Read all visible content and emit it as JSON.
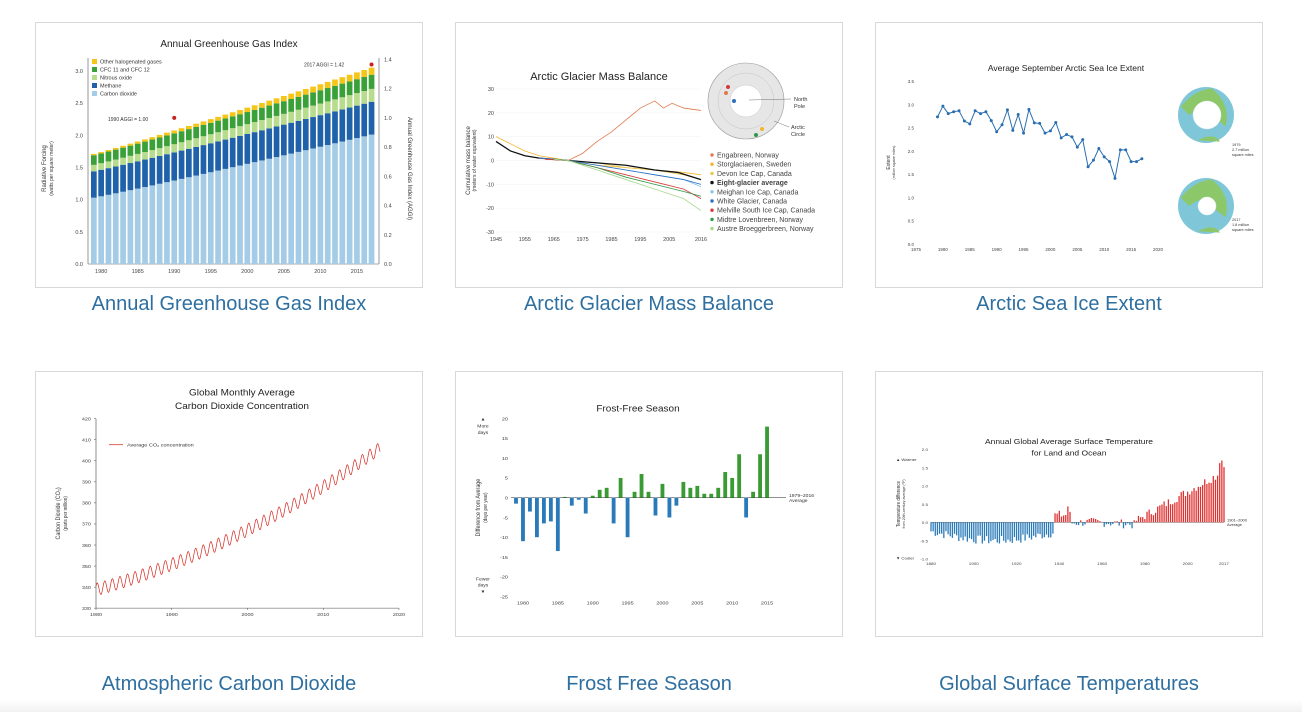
{
  "cards": [
    {
      "caption": "Annual Greenhouse Gas Index"
    },
    {
      "caption": "Arctic Glacier Mass Balance"
    },
    {
      "caption": "Arctic Sea Ice Extent"
    },
    {
      "caption": "Atmospheric Carbon Dioxide"
    },
    {
      "caption": "Frost Free Season"
    },
    {
      "caption": "Global Surface Temperatures"
    }
  ],
  "colors": {
    "caption": "#2e6fa0",
    "co2_red": "#d7261e",
    "bar_blue": "#2a7ab9",
    "bar_green": "#3a9b34",
    "temp_red": "#e03030"
  },
  "chart_data": [
    {
      "type": "bar",
      "title": "Annual Greenhouse Gas Index",
      "ylabel": "Radiative Forcing",
      "ylabel_sub": "(watts per square meter)",
      "y2label": "Annual Greenhouse Gas Index (AGGI)",
      "ylim": [
        0,
        3.2
      ],
      "yticks": [
        "0.0",
        "0.5",
        "1.0",
        "1.5",
        "2.0",
        "2.5",
        "3.0"
      ],
      "y2ticks": [
        "0.0",
        "0.2",
        "0.4",
        "0.6",
        "0.8",
        "1.0",
        "1.2",
        "1.4"
      ],
      "xticks": [
        "1980",
        "1985",
        "1990",
        "1995",
        "2000",
        "2005",
        "2010",
        "2015"
      ],
      "years": [
        1979,
        2017
      ],
      "stacked": true,
      "legend": [
        {
          "name": "Other halogenated gases",
          "color": "#f5c518"
        },
        {
          "name": "CFC 11 and CFC 12",
          "color": "#3aa038"
        },
        {
          "name": "Nitrous oxide",
          "color": "#b7dc8c"
        },
        {
          "name": "Methane",
          "color": "#2062a9"
        },
        {
          "name": "Carbon dioxide",
          "color": "#a5cce6"
        }
      ],
      "series_start": {
        "co2": 1.03,
        "ch4": 0.41,
        "n2o": 0.1,
        "cfc": 0.15,
        "other": 0.02
      },
      "series_end": {
        "co2": 2.01,
        "ch4": 0.51,
        "n2o": 0.2,
        "cfc": 0.22,
        "other": 0.11
      },
      "annotations": [
        "1990 AGGI = 1.00",
        "2017 AGGI = 1.42"
      ]
    },
    {
      "type": "line",
      "title": "Arctic Glacier Mass Balance",
      "ylabel": "Cumulative mass balance",
      "ylabel_sub": "(meters of water equivalent)",
      "ylim": [
        -30,
        30
      ],
      "yticks": [
        "30",
        "20",
        "10",
        "0",
        "-10",
        "-20",
        "-30"
      ],
      "xticks": [
        "1945",
        "1955",
        "1965",
        "1975",
        "1985",
        "1995",
        "2005",
        "2016"
      ],
      "map_labels": [
        "North Pole",
        "Arctic Circle"
      ],
      "legend": [
        {
          "name": "Engabreen, Norway",
          "color": "#e07a4e"
        },
        {
          "name": "Storglaciaeren, Sweden",
          "color": "#f2b52a"
        },
        {
          "name": "Devon Ice Cap, Canada",
          "color": "#e8c84a"
        },
        {
          "name": "Eight-glacier average",
          "color": "#111111"
        },
        {
          "name": "Meighan Ice Cap, Canada",
          "color": "#8cc5e4"
        },
        {
          "name": "White Glacier, Canada",
          "color": "#2d6fc2"
        },
        {
          "name": "Melville South Ice Cap, Canada",
          "color": "#d63a3a"
        },
        {
          "name": "Midtre Lovenbreen, Norway",
          "color": "#2f9a46"
        },
        {
          "name": "Austre Broeggerbreen, Norway",
          "color": "#a9d88b"
        }
      ]
    },
    {
      "type": "line",
      "title": "Average September Arctic Sea Ice Extent",
      "ylabel": "Extent",
      "ylabel_sub": "(million square miles)",
      "ylim": [
        0,
        3.5
      ],
      "yticks": [
        "0.0",
        "0.5",
        "1.0",
        "1.5",
        "2.0",
        "2.5",
        "3.0",
        "3.5"
      ],
      "xticks": [
        "1975",
        "1980",
        "1985",
        "1990",
        "1995",
        "2000",
        "2005",
        "2010",
        "2015",
        "2020"
      ],
      "map_labels": [
        "1979",
        "2.7 million",
        "square miles",
        "2017",
        "1.8 million",
        "square miles"
      ],
      "x": [
        1979,
        1980,
        1981,
        1982,
        1983,
        1984,
        1985,
        1986,
        1987,
        1988,
        1989,
        1990,
        1991,
        1992,
        1993,
        1994,
        1995,
        1996,
        1997,
        1998,
        1999,
        2000,
        2001,
        2002,
        2003,
        2004,
        2005,
        2006,
        2007,
        2008,
        2009,
        2010,
        2011,
        2012,
        2013,
        2014,
        2015,
        2016,
        2017
      ],
      "y": [
        2.73,
        2.96,
        2.8,
        2.84,
        2.86,
        2.64,
        2.58,
        2.86,
        2.8,
        2.84,
        2.65,
        2.41,
        2.56,
        2.88,
        2.44,
        2.78,
        2.38,
        2.89,
        2.6,
        2.59,
        2.38,
        2.43,
        2.61,
        2.28,
        2.35,
        2.3,
        2.08,
        2.24,
        1.66,
        1.8,
        2.05,
        1.87,
        1.77,
        1.41,
        2.02,
        2.02,
        1.77,
        1.77,
        1.83
      ]
    },
    {
      "type": "line",
      "title": "Global Monthly Average Carbon Dioxide Concentration",
      "title_lines": [
        "Global Monthly Average",
        "Carbon Dioxide Concentration"
      ],
      "ylabel": "Carbon Dioxide (CO₂)",
      "ylabel_sub": "(parts per million)",
      "legend": [
        {
          "name": "Average CO₂ concentration",
          "color": "#d7261e"
        }
      ],
      "ylim": [
        330,
        420
      ],
      "yticks": [
        "330",
        "340",
        "350",
        "360",
        "370",
        "380",
        "390",
        "400",
        "410",
        "420"
      ],
      "xticks": [
        "1980",
        "1990",
        "2000",
        "2010",
        "2020"
      ],
      "x_range": [
        1980,
        2017.5
      ],
      "y_start": 338.8,
      "y_end": 406.0,
      "seasonal_amplitude": 3.0
    },
    {
      "type": "bar",
      "title": "Frost-Free Season",
      "ylabel": "Difference from Average",
      "ylabel_sub": "(days per year)",
      "baseline_label": [
        "1979–2016",
        "Average"
      ],
      "more_label": [
        "More",
        "days"
      ],
      "fewer_label": [
        "Fewer",
        "days"
      ],
      "ylim": [
        -25,
        20
      ],
      "yticks": [
        "20",
        "15",
        "10",
        "5",
        "0",
        "-5",
        "-10",
        "-15",
        "-20",
        "-25"
      ],
      "xticks": [
        "1980",
        "1985",
        "1990",
        "1995",
        "2000",
        "2005",
        "2010",
        "2015"
      ],
      "x": [
        1979,
        1980,
        1981,
        1982,
        1983,
        1984,
        1985,
        1986,
        1987,
        1988,
        1989,
        1990,
        1991,
        1992,
        1993,
        1994,
        1995,
        1996,
        1997,
        1998,
        1999,
        2000,
        2001,
        2002,
        2003,
        2004,
        2005,
        2006,
        2007,
        2008,
        2009,
        2010,
        2011,
        2012,
        2013,
        2014,
        2015,
        2016
      ],
      "values": [
        -1.5,
        -11,
        -3.5,
        -10,
        -6.5,
        -6,
        -13.5,
        0.2,
        -2,
        -0.5,
        -4,
        0.5,
        2,
        2.5,
        -6.5,
        5,
        -10,
        1.5,
        6,
        1.5,
        -4.5,
        3.5,
        -5,
        -2,
        4,
        2.5,
        3,
        1,
        1,
        2.5,
        6.5,
        5,
        11,
        -5,
        1.5,
        11,
        18,
        0
      ],
      "positive_color": "#3a9b34",
      "negative_color": "#2a7ab9"
    },
    {
      "type": "bar",
      "title": "Annual Global Average Surface Temperature for Land and Ocean",
      "title_lines": [
        "Annual Global Average Surface Temperature",
        "for Land and Ocean"
      ],
      "ylabel": "Temperature difference",
      "ylabel_sub": "from 20th-century average (°F)",
      "baseline_label": [
        "1901–2000",
        "Average"
      ],
      "warmer_label": "Warmer",
      "cooler_label": "Cooler",
      "ylim": [
        -1.0,
        2.0
      ],
      "yticks": [
        "2.0",
        "1.5",
        "1.0",
        "0.5",
        "0.0",
        "-0.5",
        "-1.0"
      ],
      "xticks": [
        "1880",
        "1900",
        "1920",
        "1940",
        "1960",
        "1980",
        "2000",
        "2017"
      ],
      "x_range": [
        1880,
        2017
      ],
      "positive_color": "#e03030",
      "negative_color": "#2a7ab9"
    }
  ]
}
